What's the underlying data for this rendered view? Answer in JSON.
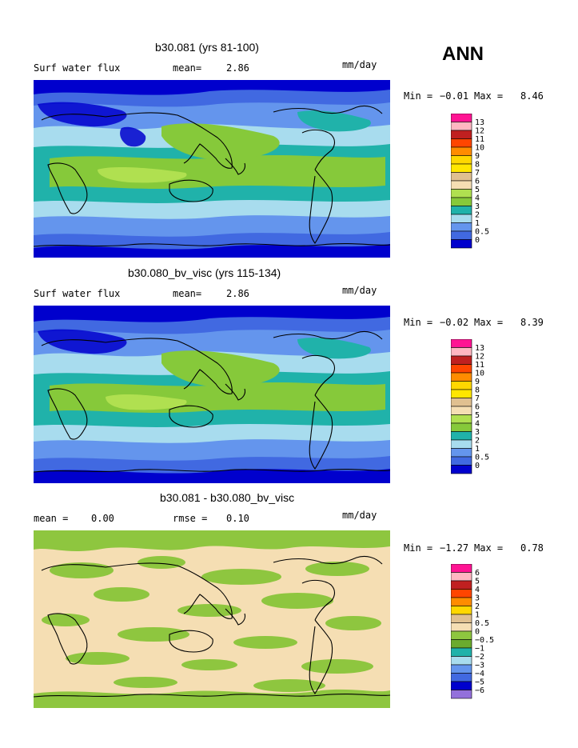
{
  "season_label": "ANN",
  "panels": [
    {
      "title": "b30.081 (yrs 81-100)",
      "left_label": "Surf water flux",
      "mid_label": "mean=",
      "mid_value": "2.86",
      "units": "mm/day",
      "min_label": "Min =",
      "min_value": "−0.01",
      "max_label": "Max =",
      "max_value": "8.46",
      "levels": [
        "13",
        "12",
        "11",
        "10",
        "9",
        "8",
        "7",
        "6",
        "5",
        "4",
        "3",
        "2",
        "1",
        "0.5",
        "0"
      ]
    },
    {
      "title": "b30.080_bv_visc (yrs 115-134)",
      "left_label": "Surf water flux",
      "mid_label": "mean=",
      "mid_value": "2.86",
      "units": "mm/day",
      "min_label": "Min =",
      "min_value": "−0.02",
      "max_label": "Max =",
      "max_value": "8.39",
      "levels": [
        "13",
        "12",
        "11",
        "10",
        "9",
        "8",
        "7",
        "6",
        "5",
        "4",
        "3",
        "2",
        "1",
        "0.5",
        "0"
      ]
    },
    {
      "title": "b30.081 - b30.080_bv_visc",
      "left_label": "mean =",
      "left_value": "0.00",
      "mid_label": "rmse =",
      "mid_value": "0.10",
      "units": "mm/day",
      "min_label": "Min =",
      "min_value": "−1.27",
      "max_label": "Max =",
      "max_value": "0.78",
      "levels": [
        "6",
        "5",
        "4",
        "3",
        "2",
        "1",
        "0.5",
        "0",
        "−0.5",
        "−1",
        "−2",
        "−3",
        "−4",
        "−5",
        "−6"
      ]
    }
  ],
  "colors": {
    "abs_scale": [
      "#ff1493",
      "#ffb6c1",
      "#c02020",
      "#ff4500",
      "#ff8c00",
      "#ffd700",
      "#ffe600",
      "#e0c090",
      "#f5deb3",
      "#b0e050",
      "#86c93a",
      "#20b2aa",
      "#a8dcee",
      "#6495ed",
      "#4169e1",
      "#0000cd",
      "#9370db"
    ],
    "diff_scale": [
      "#ff1493",
      "#ffb6c1",
      "#c02020",
      "#ff4500",
      "#ff8c00",
      "#ffd700",
      "#e0c090",
      "#f5deb3",
      "#8ec63f",
      "#6bab2e",
      "#20b2aa",
      "#a8dcee",
      "#6495ed",
      "#4169e1",
      "#0000cd",
      "#9370db"
    ]
  },
  "chart_data": [
    {
      "type": "heatmap",
      "title": "b30.081 (yrs 81-100)",
      "variable": "Surf water flux",
      "units": "mm/day",
      "mean": 2.86,
      "min": -0.01,
      "max": 8.46,
      "contour_levels": [
        0,
        0.5,
        1,
        2,
        3,
        4,
        5,
        6,
        7,
        8,
        9,
        10,
        11,
        12,
        13
      ]
    },
    {
      "type": "heatmap",
      "title": "b30.080_bv_visc (yrs 115-134)",
      "variable": "Surf water flux",
      "units": "mm/day",
      "mean": 2.86,
      "min": -0.02,
      "max": 8.39,
      "contour_levels": [
        0,
        0.5,
        1,
        2,
        3,
        4,
        5,
        6,
        7,
        8,
        9,
        10,
        11,
        12,
        13
      ]
    },
    {
      "type": "heatmap",
      "title": "b30.081 - b30.080_bv_visc",
      "units": "mm/day",
      "mean": 0.0,
      "rmse": 0.1,
      "min": -1.27,
      "max": 0.78,
      "contour_levels": [
        -6,
        -5,
        -4,
        -3,
        -2,
        -1,
        -0.5,
        0,
        0.5,
        1,
        2,
        3,
        4,
        5,
        6
      ]
    }
  ]
}
